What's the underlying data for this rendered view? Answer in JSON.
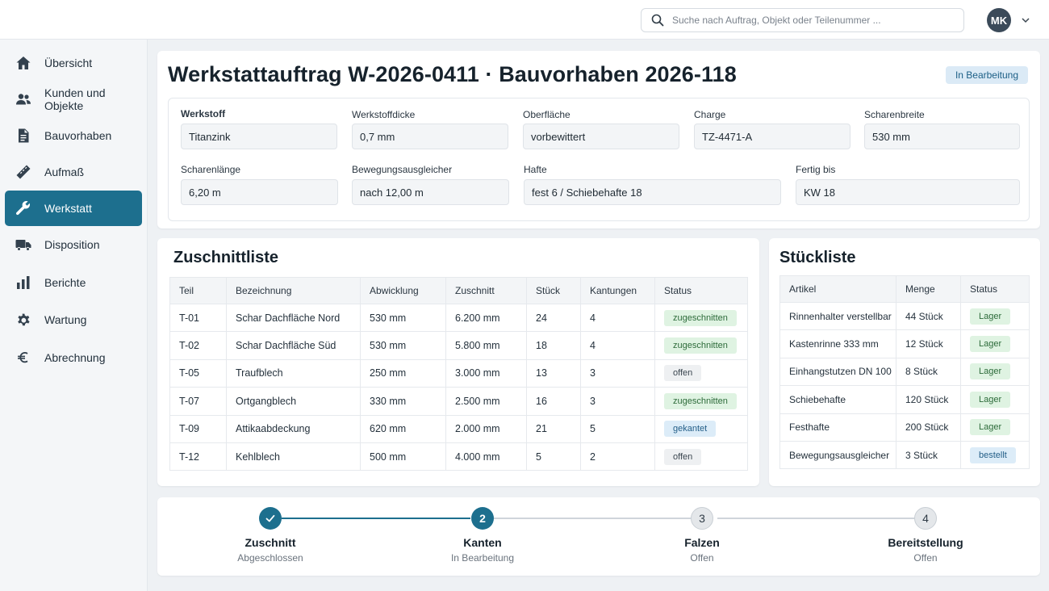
{
  "search": {
    "placeholder": "Suche nach Auftrag, Objekt oder Teilenummer ..."
  },
  "user": {
    "initials": "MK"
  },
  "sidebar": {
    "items": [
      {
        "label": "Übersicht",
        "icon": "home-icon"
      },
      {
        "label": "Kunden und Objekte",
        "icon": "users-icon"
      },
      {
        "label": "Bauvorhaben",
        "icon": "document-icon"
      },
      {
        "label": "Aufmaß",
        "icon": "ruler-icon"
      },
      {
        "label": "Werkstatt",
        "icon": "wrench-icon",
        "active": true
      },
      {
        "label": "Disposition",
        "icon": "truck-icon"
      },
      {
        "label": "Berichte",
        "icon": "bar-chart-icon"
      },
      {
        "label": "Wartung",
        "icon": "gear-icon"
      },
      {
        "label": "Abrechnung",
        "icon": "euro-icon"
      }
    ]
  },
  "header": {
    "title": "Werkstattauftrag W-2026-0411 · Bauvorhaben 2026-118",
    "status": "In Bearbeitung",
    "fields": {
      "werkstoff": {
        "label": "Werkstoff",
        "value": "Titanzink"
      },
      "werkstoffdicke": {
        "label": "Werkstoffdicke",
        "value": "0,7 mm"
      },
      "oberflaeche": {
        "label": "Oberfläche",
        "value": "vorbewittert"
      },
      "charge": {
        "label": "Charge",
        "value": "TZ-4471-A"
      },
      "scharenbreite": {
        "label": "Scharenbreite",
        "value": "530 mm"
      },
      "scharenlaenge": {
        "label": "Scharenlänge",
        "value": "6,20 m"
      },
      "bewegungsausgleicher": {
        "label": "Bewegungsausgleicher",
        "value": "nach 12,00 m"
      },
      "hafte": {
        "label": "Hafte",
        "value": "fest 6 / Schiebehafte 18"
      },
      "fertig_bis": {
        "label": "Fertig bis",
        "value": "KW 18"
      }
    }
  },
  "zuschnitt": {
    "title": "Zuschnittliste",
    "columns": [
      "Teil",
      "Bezeichnung",
      "Abwicklung",
      "Zuschnitt",
      "Stück",
      "Kantungen",
      "Status"
    ],
    "rows": [
      {
        "teil": "T-01",
        "bezeichnung": "Schar Dachfläche Nord",
        "abwicklung": "530 mm",
        "zuschnitt": "6.200 mm",
        "stueck": "24",
        "kantungen": "4",
        "status": "zugeschnitten",
        "tone": "green"
      },
      {
        "teil": "T-02",
        "bezeichnung": "Schar Dachfläche Süd",
        "abwicklung": "530 mm",
        "zuschnitt": "5.800 mm",
        "stueck": "18",
        "kantungen": "4",
        "status": "zugeschnitten",
        "tone": "green"
      },
      {
        "teil": "T-05",
        "bezeichnung": "Traufblech",
        "abwicklung": "250 mm",
        "zuschnitt": "3.000 mm",
        "stueck": "13",
        "kantungen": "3",
        "status": "offen",
        "tone": "gray"
      },
      {
        "teil": "T-07",
        "bezeichnung": "Ortgangblech",
        "abwicklung": "330 mm",
        "zuschnitt": "2.500 mm",
        "stueck": "16",
        "kantungen": "3",
        "status": "zugeschnitten",
        "tone": "green"
      },
      {
        "teil": "T-09",
        "bezeichnung": "Attikaabdeckung",
        "abwicklung": "620 mm",
        "zuschnitt": "2.000 mm",
        "stueck": "21",
        "kantungen": "5",
        "status": "gekantet",
        "tone": "blue"
      },
      {
        "teil": "T-12",
        "bezeichnung": "Kehlblech",
        "abwicklung": "500 mm",
        "zuschnitt": "4.000 mm",
        "stueck": "5",
        "kantungen": "2",
        "status": "offen",
        "tone": "gray"
      }
    ]
  },
  "stueckliste": {
    "title": "Stückliste",
    "columns": [
      "Artikel",
      "Menge",
      "Status"
    ],
    "rows": [
      {
        "artikel": "Rinnenhalter verstellbar",
        "menge": "44 Stück",
        "status": "Lager",
        "tone": "green"
      },
      {
        "artikel": "Kastenrinne 333 mm",
        "menge": "12 Stück",
        "status": "Lager",
        "tone": "green"
      },
      {
        "artikel": "Einhangstutzen DN 100",
        "menge": "8 Stück",
        "status": "Lager",
        "tone": "green"
      },
      {
        "artikel": "Schiebehafte",
        "menge": "120 Stück",
        "status": "Lager",
        "tone": "green"
      },
      {
        "artikel": "Festhafte",
        "menge": "200 Stück",
        "status": "Lager",
        "tone": "green"
      },
      {
        "artikel": "Bewegungsausgleicher",
        "menge": "3 Stück",
        "status": "bestellt",
        "tone": "blue"
      }
    ]
  },
  "stepper": {
    "steps": [
      {
        "number": "1",
        "title": "Zuschnitt",
        "sub": "Abgeschlossen",
        "state": "done"
      },
      {
        "number": "2",
        "title": "Kanten",
        "sub": "In Bearbeitung",
        "state": "active"
      },
      {
        "number": "3",
        "title": "Falzen",
        "sub": "Offen",
        "state": "pending"
      },
      {
        "number": "4",
        "title": "Bereitstellung",
        "sub": "Offen",
        "state": "pending"
      }
    ]
  },
  "colors": {
    "accent": "#1d6f8e",
    "page_bg": "#eef1f4"
  }
}
